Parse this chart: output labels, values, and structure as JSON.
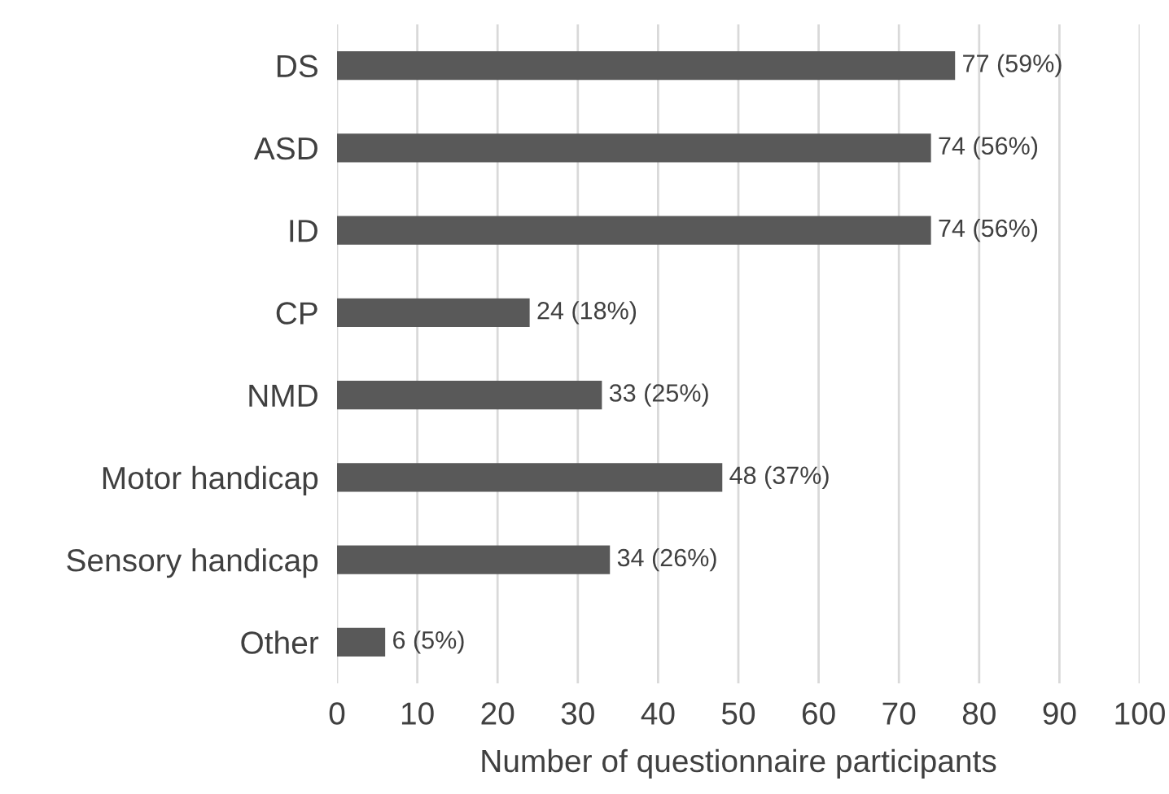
{
  "chart_data": {
    "type": "bar",
    "orientation": "horizontal",
    "xlabel": "Number of questionnaire participants",
    "categories": [
      "DS",
      "ASD",
      "ID",
      "CP",
      "NMD",
      "Motor handicap",
      "Sensory handicap",
      "Other"
    ],
    "values": [
      77,
      74,
      74,
      24,
      33,
      48,
      34,
      6
    ],
    "value_labels": [
      "77 (59%)",
      "74 (56%)",
      "74 (56%)",
      "24 (18%)",
      "33 (25%)",
      "48 (37%)",
      "34 (26%)",
      "6 (5%)"
    ],
    "color": "#595959",
    "xlim": [
      0,
      100
    ],
    "xticks": [
      0,
      10,
      20,
      30,
      40,
      50,
      60,
      70,
      80,
      90,
      100
    ],
    "grid": "x",
    "legend": false
  }
}
